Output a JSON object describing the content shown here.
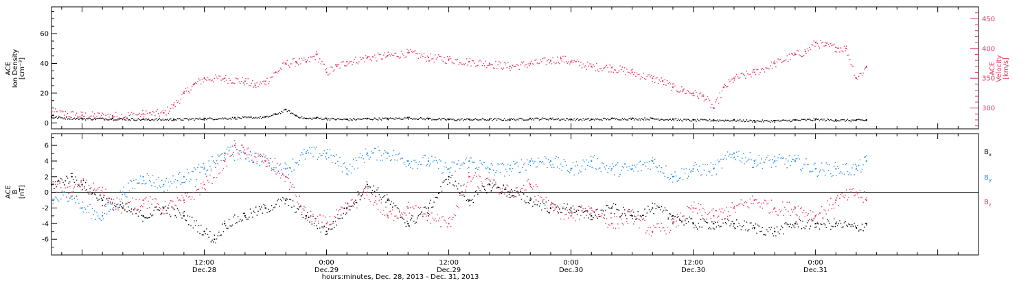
{
  "colors": {
    "black": "#000000",
    "red": "#e8305a",
    "blue": "#1f88e5"
  },
  "xaxis": {
    "title": "hours:minutes, Dec. 28, 2013 - Dec. 31, 2013",
    "ticks": [
      {
        "h": 12,
        "time": "12:00",
        "day": "Dec.28"
      },
      {
        "h": 24,
        "time": "0:00",
        "day": "Dec.29"
      },
      {
        "h": 36,
        "time": "12:00",
        "day": "Dec.29"
      },
      {
        "h": 48,
        "time": "0:00",
        "day": "Dec.30"
      },
      {
        "h": 60,
        "time": "12:00",
        "day": "Dec.30"
      },
      {
        "h": 72,
        "time": "0:00",
        "day": "Dec.31"
      }
    ],
    "range": [
      -3,
      88
    ]
  },
  "chart_data": [
    {
      "type": "scatter",
      "ylabel_left": [
        "ACE",
        "Ion Density",
        "[cm⁻³]"
      ],
      "ylabel_right": [
        "ACE",
        "Velocity",
        "[km/s]"
      ],
      "left_ticks": [
        "0",
        "20",
        "40",
        "60"
      ],
      "right_ticks": [
        "300",
        "350",
        "400",
        "450"
      ],
      "ylim_left": [
        -4,
        78
      ],
      "ylim_right": [
        265,
        470
      ],
      "series": [
        {
          "name": "Ion Density",
          "color": "black",
          "axis": "left",
          "x": [
            -3,
            0,
            3,
            6,
            9,
            12,
            15,
            18,
            19,
            20,
            21,
            22,
            23,
            24,
            26,
            28,
            30,
            32,
            34,
            36,
            38,
            40,
            42,
            44,
            46,
            48,
            50,
            52,
            54,
            56,
            58,
            60,
            62,
            64,
            66,
            68,
            70,
            72,
            74,
            76,
            77
          ],
          "y": [
            4,
            3,
            3,
            2.5,
            2.5,
            3,
            3.5,
            4,
            6,
            9,
            5,
            3,
            3.5,
            3,
            2.5,
            3,
            3,
            3.5,
            3,
            2.5,
            2.5,
            2.5,
            2.5,
            3,
            3,
            2.5,
            2.5,
            3,
            3,
            3,
            2.5,
            2,
            2,
            2,
            1.5,
            1.5,
            2,
            2.5,
            2,
            2,
            2
          ]
        },
        {
          "name": "Velocity",
          "color": "red",
          "axis": "right",
          "x": [
            -3,
            0,
            3,
            6,
            8,
            9,
            10,
            11,
            12,
            14,
            16,
            17,
            18,
            19,
            20,
            21,
            22,
            23,
            24,
            25,
            26,
            28,
            30,
            32,
            34,
            36,
            38,
            40,
            42,
            44,
            46,
            47,
            48,
            50,
            52,
            54,
            56,
            57,
            58,
            59,
            60,
            61,
            62,
            63,
            64,
            66,
            68,
            70,
            71,
            72,
            73,
            74,
            75,
            76,
            77
          ],
          "y": [
            293,
            288,
            287,
            290,
            292,
            305,
            325,
            340,
            350,
            350,
            345,
            338,
            345,
            360,
            375,
            378,
            378,
            390,
            360,
            370,
            378,
            385,
            388,
            393,
            385,
            382,
            378,
            375,
            370,
            375,
            380,
            383,
            378,
            370,
            368,
            360,
            350,
            345,
            335,
            330,
            325,
            320,
            300,
            335,
            350,
            360,
            375,
            390,
            395,
            410,
            405,
            402,
            400,
            350,
            370
          ]
        }
      ]
    },
    {
      "type": "scatter",
      "ylabel_left": [
        "ACE",
        "B",
        "[nT]"
      ],
      "left_ticks": [
        "-6",
        "-4",
        "-2",
        "0",
        "2",
        "4",
        "6"
      ],
      "ylim_left": [
        -8,
        7.5
      ],
      "legend": [
        "Bx",
        "By",
        "Bz"
      ],
      "legend_position": "right",
      "series": [
        {
          "name": "Bx",
          "color": "black",
          "x": [
            -3,
            -1,
            0,
            2,
            4,
            6,
            8,
            10,
            12,
            13,
            14,
            16,
            18,
            20,
            22,
            24,
            26,
            28,
            30,
            32,
            34,
            36,
            38,
            40,
            42,
            44,
            46,
            48,
            50,
            52,
            54,
            56,
            58,
            60,
            62,
            64,
            66,
            68,
            70,
            72,
            74,
            76,
            77
          ],
          "y": [
            1,
            2,
            1,
            -1,
            -2,
            -3,
            -2,
            -3,
            -5,
            -6,
            -4,
            -3,
            -2,
            -1,
            -3,
            -5,
            -2,
            1,
            -1,
            -4,
            -2,
            2,
            -1,
            1,
            0,
            -1,
            -2,
            -2,
            -3,
            -2,
            -3,
            -2,
            -3,
            -4,
            -4,
            -4,
            -4.5,
            -5,
            -4,
            -4,
            -4,
            -4.5,
            -4
          ]
        },
        {
          "name": "By",
          "color": "blue",
          "x": [
            -3,
            -1,
            0,
            2,
            4,
            6,
            8,
            10,
            12,
            14,
            16,
            18,
            20,
            22,
            24,
            26,
            28,
            30,
            32,
            34,
            36,
            38,
            40,
            42,
            44,
            46,
            48,
            50,
            52,
            54,
            56,
            58,
            60,
            62,
            64,
            66,
            68,
            70,
            72,
            74,
            76,
            77
          ],
          "y": [
            -1,
            0,
            -2,
            -3,
            0,
            2,
            1,
            2,
            3,
            5,
            5,
            4,
            3,
            5,
            5,
            3,
            5,
            5,
            4,
            4,
            3,
            4,
            3,
            3,
            4,
            4,
            3,
            4,
            3,
            3,
            4,
            2,
            3,
            3,
            5,
            4,
            4,
            4,
            3,
            3,
            3,
            4
          ]
        },
        {
          "name": "Bz",
          "color": "red",
          "x": [
            -3,
            -1,
            0,
            2,
            4,
            6,
            8,
            10,
            12,
            14,
            15,
            16,
            18,
            20,
            22,
            24,
            26,
            28,
            30,
            32,
            34,
            36,
            38,
            40,
            42,
            44,
            46,
            48,
            50,
            52,
            54,
            56,
            58,
            60,
            62,
            64,
            66,
            68,
            70,
            72,
            74,
            76,
            77
          ],
          "y": [
            1,
            0,
            1,
            0,
            -2,
            -1,
            -2,
            -1,
            1,
            4,
            6,
            5,
            4,
            2,
            -3,
            -4,
            -2,
            0,
            -3,
            -2,
            -3,
            -4,
            2,
            1,
            0,
            1,
            -2,
            -3,
            -2,
            -4,
            -3,
            -5,
            -4,
            -2,
            -3,
            -2,
            -1,
            -2,
            -2,
            -3,
            -1,
            0,
            -1
          ]
        }
      ]
    }
  ],
  "legend_labels": [
    {
      "base": "B",
      "sub": "x",
      "color": "black"
    },
    {
      "base": "B",
      "sub": "y",
      "color": "blue"
    },
    {
      "base": "B",
      "sub": "z",
      "color": "red"
    }
  ]
}
